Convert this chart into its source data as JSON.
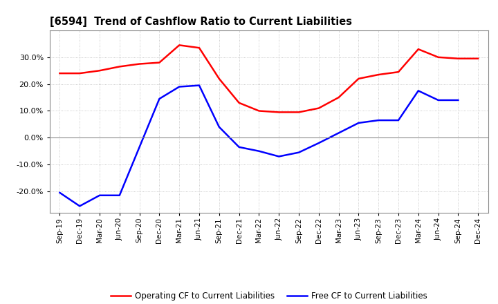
{
  "title": "[6594]  Trend of Cashflow Ratio to Current Liabilities",
  "x_labels": [
    "Sep-19",
    "Dec-19",
    "Mar-20",
    "Jun-20",
    "Sep-20",
    "Dec-20",
    "Mar-21",
    "Jun-21",
    "Sep-21",
    "Dec-21",
    "Mar-22",
    "Jun-22",
    "Sep-22",
    "Dec-22",
    "Mar-23",
    "Jun-23",
    "Sep-23",
    "Dec-23",
    "Mar-24",
    "Jun-24",
    "Sep-24",
    "Dec-24"
  ],
  "operating_cf": [
    0.24,
    0.24,
    0.25,
    0.265,
    0.275,
    0.28,
    0.345,
    0.335,
    0.22,
    0.13,
    0.1,
    0.095,
    0.095,
    0.11,
    0.15,
    0.22,
    0.235,
    0.245,
    0.33,
    0.3,
    0.295,
    0.295
  ],
  "free_cf": [
    -0.205,
    -0.255,
    -0.215,
    -0.215,
    null,
    0.145,
    0.19,
    0.195,
    0.04,
    -0.035,
    -0.05,
    -0.07,
    -0.055,
    -0.02,
    null,
    0.055,
    0.065,
    0.065,
    0.175,
    0.14,
    0.14,
    null
  ],
  "operating_color": "#FF0000",
  "free_color": "#0000FF",
  "ylim": [
    -0.28,
    0.4
  ],
  "yticks": [
    0.3,
    0.2,
    0.1,
    0.0,
    -0.1,
    -0.2
  ],
  "legend_labels": [
    "Operating CF to Current Liabilities",
    "Free CF to Current Liabilities"
  ],
  "background_color": "#FFFFFF",
  "plot_bg_color": "#FFFFFF",
  "grid_color": "#BBBBBB"
}
